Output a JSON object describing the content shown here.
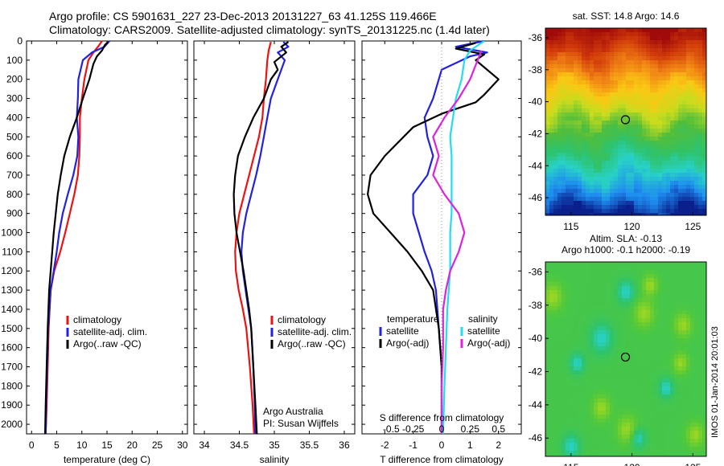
{
  "header": {
    "title_line1": "Argo profile: CS 5901631_227 23-Dec-2013 20131227_63 41.125S 119.466E",
    "title_line2": "Climatology: CARS2009. Satellite-adjusted climatology: synTS_20131225.nc (1.4d later)"
  },
  "colors": {
    "climatology": "#ee1111",
    "satellite": "#2222dd",
    "argo": "#000000",
    "satellite_salinity": "#22ddee",
    "argo_adj_salinity": "#dd22dd"
  },
  "chart_data": [
    {
      "type": "line",
      "id": "temperature",
      "xlabel": "temperature (deg C)",
      "xlim": [
        -1,
        31
      ],
      "ylim": [
        2050,
        0
      ],
      "xticks": [
        0,
        5,
        10,
        15,
        20,
        25,
        30
      ],
      "yticks": [
        0,
        100,
        200,
        300,
        400,
        500,
        600,
        700,
        800,
        900,
        1000,
        1100,
        1200,
        1300,
        1400,
        1500,
        1600,
        1700,
        1800,
        1900,
        2000
      ],
      "legend": {
        "position": "bottom-right",
        "entries": [
          "climatology",
          "satellite-adj. clim.",
          "Argo(..raw -QC)"
        ]
      },
      "series": [
        {
          "name": "climatology",
          "color": "#ee1111",
          "points": [
            [
              14.0,
              0
            ],
            [
              13.2,
              30
            ],
            [
              12.3,
              60
            ],
            [
              11.3,
              100
            ],
            [
              10.5,
              200
            ],
            [
              10.0,
              300
            ],
            [
              9.6,
              400
            ],
            [
              9.6,
              500
            ],
            [
              9.5,
              600
            ],
            [
              9.2,
              700
            ],
            [
              8.5,
              800
            ],
            [
              7.6,
              900
            ],
            [
              6.7,
              1000
            ],
            [
              5.7,
              1100
            ],
            [
              4.5,
              1200
            ],
            [
              3.8,
              1300
            ],
            [
              3.4,
              1500
            ],
            [
              3.2,
              1700
            ],
            [
              3.0,
              1900
            ],
            [
              2.8,
              2050
            ]
          ]
        },
        {
          "name": "satellite-adj. clim.",
          "color": "#2222dd",
          "points": [
            [
              15.5,
              0
            ],
            [
              14.5,
              30
            ],
            [
              12.0,
              60
            ],
            [
              10.2,
              100
            ],
            [
              9.3,
              200
            ],
            [
              9.2,
              300
            ],
            [
              9.0,
              400
            ],
            [
              9.3,
              500
            ],
            [
              9.1,
              600
            ],
            [
              8.3,
              700
            ],
            [
              7.2,
              800
            ],
            [
              6.2,
              900
            ],
            [
              5.5,
              1000
            ],
            [
              5.0,
              1100
            ],
            [
              4.4,
              1200
            ],
            [
              3.8,
              1300
            ],
            [
              3.3,
              1500
            ],
            [
              3.1,
              1700
            ],
            [
              2.9,
              1900
            ],
            [
              2.8,
              2050
            ]
          ]
        },
        {
          "name": "Argo(..raw -QC)",
          "color": "#000000",
          "points": [
            [
              15.2,
              5
            ],
            [
              14.6,
              20
            ],
            [
              14.0,
              50
            ],
            [
              13.0,
              80
            ],
            [
              12.3,
              120
            ],
            [
              11.5,
              200
            ],
            [
              10.2,
              300
            ],
            [
              9.0,
              400
            ],
            [
              7.6,
              500
            ],
            [
              6.5,
              600
            ],
            [
              5.8,
              700
            ],
            [
              5.2,
              800
            ],
            [
              4.8,
              900
            ],
            [
              4.4,
              1000
            ],
            [
              4.1,
              1100
            ],
            [
              3.8,
              1200
            ],
            [
              3.5,
              1300
            ],
            [
              3.2,
              1500
            ],
            [
              3.0,
              1700
            ],
            [
              2.8,
              1900
            ],
            [
              2.7,
              2050
            ]
          ]
        }
      ]
    },
    {
      "type": "line",
      "id": "salinity",
      "xlabel": "salinity",
      "xlim": [
        33.85,
        36.15
      ],
      "ylim": [
        2050,
        0
      ],
      "xticks": [
        34,
        34.5,
        35,
        35.5,
        36
      ],
      "xticklabels": [
        "34",
        "34.5",
        "35",
        "35.5",
        "36"
      ],
      "legend": {
        "position": "bottom-right",
        "entries": [
          "climatology",
          "satellite-adj. clim.",
          "Argo(..raw -QC)"
        ]
      },
      "annotation": [
        "Argo Australia",
        "PI: Susan Wijffels"
      ],
      "series": [
        {
          "name": "climatology",
          "color": "#ee1111",
          "points": [
            [
              34.95,
              5
            ],
            [
              34.92,
              50
            ],
            [
              34.9,
              100
            ],
            [
              34.88,
              200
            ],
            [
              34.85,
              300
            ],
            [
              34.83,
              400
            ],
            [
              34.78,
              500
            ],
            [
              34.71,
              600
            ],
            [
              34.64,
              700
            ],
            [
              34.57,
              800
            ],
            [
              34.5,
              900
            ],
            [
              34.46,
              1000
            ],
            [
              34.44,
              1100
            ],
            [
              34.45,
              1200
            ],
            [
              34.49,
              1300
            ],
            [
              34.55,
              1400
            ],
            [
              34.6,
              1500
            ],
            [
              34.65,
              1700
            ],
            [
              34.69,
              1900
            ],
            [
              34.71,
              2050
            ]
          ]
        },
        {
          "name": "satellite-adj. clim.",
          "color": "#2222dd",
          "points": [
            [
              35.13,
              5
            ],
            [
              35.2,
              30
            ],
            [
              35.05,
              60
            ],
            [
              35.15,
              100
            ],
            [
              35.05,
              200
            ],
            [
              34.95,
              300
            ],
            [
              34.9,
              400
            ],
            [
              34.85,
              500
            ],
            [
              34.8,
              600
            ],
            [
              34.74,
              700
            ],
            [
              34.67,
              800
            ],
            [
              34.6,
              900
            ],
            [
              34.55,
              1000
            ],
            [
              34.53,
              1100
            ],
            [
              34.55,
              1200
            ],
            [
              34.59,
              1300
            ],
            [
              34.63,
              1400
            ],
            [
              34.67,
              1500
            ],
            [
              34.7,
              1700
            ],
            [
              34.72,
              1900
            ],
            [
              34.73,
              2050
            ]
          ]
        },
        {
          "name": "Argo(..raw -QC)",
          "color": "#000000",
          "points": [
            [
              35.2,
              5
            ],
            [
              35.1,
              30
            ],
            [
              35.17,
              60
            ],
            [
              35.0,
              110
            ],
            [
              35.05,
              150
            ],
            [
              34.95,
              200
            ],
            [
              34.85,
              300
            ],
            [
              34.7,
              400
            ],
            [
              34.58,
              500
            ],
            [
              34.48,
              600
            ],
            [
              34.44,
              700
            ],
            [
              34.42,
              800
            ],
            [
              34.43,
              900
            ],
            [
              34.46,
              1000
            ],
            [
              34.51,
              1100
            ],
            [
              34.56,
              1200
            ],
            [
              34.6,
              1300
            ],
            [
              34.64,
              1400
            ],
            [
              34.67,
              1500
            ],
            [
              34.7,
              1700
            ],
            [
              34.73,
              1900
            ],
            [
              34.75,
              2050
            ]
          ]
        }
      ]
    },
    {
      "type": "line",
      "id": "difference",
      "xlabel": "T difference from climatology",
      "xlabel_top": "S difference from climatology",
      "xlim": [
        -2.8,
        2.8
      ],
      "ylim": [
        2050,
        0
      ],
      "xticks": [
        -2,
        -1,
        0,
        1,
        2
      ],
      "top_ticklabels": [
        "-0.5",
        "-0.25",
        "0",
        "0.25",
        "0.5"
      ],
      "legend_left": {
        "title": "temperature",
        "entries": [
          "satellite",
          "Argo(-adj)"
        ]
      },
      "legend_right": {
        "title": "salinity",
        "entries": [
          "satellite",
          "Argo(-adj)"
        ]
      },
      "series": [
        {
          "name": "satellite",
          "quantity": "temperature",
          "color": "#2222dd",
          "points": [
            [
              1.5,
              0
            ],
            [
              0.5,
              30
            ],
            [
              1.6,
              60
            ],
            [
              1.0,
              80
            ],
            [
              0.0,
              150
            ],
            [
              -0.3,
              300
            ],
            [
              -0.6,
              400
            ],
            [
              -0.5,
              500
            ],
            [
              -0.3,
              600
            ],
            [
              -0.5,
              700
            ],
            [
              -1.0,
              800
            ],
            [
              -1.0,
              900
            ],
            [
              -0.8,
              1000
            ],
            [
              -0.6,
              1100
            ],
            [
              -0.35,
              1200
            ],
            [
              -0.2,
              1300
            ],
            [
              -0.1,
              1500
            ],
            [
              0.0,
              1700
            ],
            [
              0.0,
              1900
            ],
            [
              0.0,
              2050
            ]
          ]
        },
        {
          "name": "Argo(-adj)",
          "quantity": "temperature",
          "color": "#000000",
          "points": [
            [
              1.2,
              10
            ],
            [
              0.5,
              40
            ],
            [
              1.5,
              70
            ],
            [
              1.2,
              100
            ],
            [
              2.0,
              200
            ],
            [
              1.5,
              280
            ],
            [
              1.2,
              320
            ],
            [
              0.0,
              380
            ],
            [
              -1.0,
              450
            ],
            [
              -2.0,
              600
            ],
            [
              -2.5,
              700
            ],
            [
              -2.6,
              800
            ],
            [
              -2.4,
              900
            ],
            [
              -1.8,
              1000
            ],
            [
              -1.2,
              1100
            ],
            [
              -0.7,
              1200
            ],
            [
              -0.3,
              1300
            ],
            [
              -0.1,
              1500
            ],
            [
              0.0,
              1700
            ],
            [
              0.0,
              1900
            ],
            [
              0.0,
              2050
            ]
          ]
        },
        {
          "name": "satellite",
          "quantity": "salinity",
          "color": "#22ddee",
          "points": [
            [
              1.5,
              0
            ],
            [
              1.0,
              50
            ],
            [
              0.8,
              100
            ],
            [
              0.7,
              200
            ],
            [
              0.5,
              300
            ],
            [
              0.4,
              400
            ],
            [
              0.3,
              500
            ],
            [
              0.35,
              600
            ],
            [
              0.35,
              700
            ],
            [
              0.35,
              800
            ],
            [
              0.35,
              900
            ],
            [
              0.3,
              1000
            ],
            [
              0.3,
              1100
            ],
            [
              0.3,
              1200
            ],
            [
              0.25,
              1300
            ],
            [
              0.2,
              1400
            ],
            [
              0.15,
              1600
            ],
            [
              0.1,
              1800
            ],
            [
              0.05,
              2050
            ]
          ]
        },
        {
          "name": "Argo(-adj)",
          "quantity": "salinity",
          "color": "#dd22dd",
          "points": [
            [
              1.4,
              50
            ],
            [
              1.0,
              200
            ],
            [
              0.6,
              300
            ],
            [
              0.1,
              400
            ],
            [
              -0.3,
              500
            ],
            [
              -0.1,
              600
            ],
            [
              -0.3,
              700
            ],
            [
              0.1,
              800
            ],
            [
              0.6,
              900
            ],
            [
              0.8,
              1000
            ],
            [
              0.6,
              1100
            ],
            [
              0.3,
              1200
            ],
            [
              0.15,
              1300
            ],
            [
              0.05,
              1400
            ],
            [
              0.05,
              1600
            ],
            [
              0.0,
              1800
            ],
            [
              0.0,
              2050
            ]
          ]
        }
      ]
    },
    {
      "type": "heatmap",
      "id": "sst_map",
      "title": "sat. SST: 14.8 Argo: 14.6",
      "xlim": [
        112.9,
        126.1
      ],
      "ylim": [
        -47.1,
        -35.4
      ],
      "xticks": [
        115,
        120,
        125
      ],
      "yticks": [
        -36,
        -38,
        -40,
        -42,
        -44,
        -46
      ],
      "marker": {
        "lon": 119.466,
        "lat": -41.125
      },
      "colorscale": [
        "#0a1e8c",
        "#1e8cf0",
        "#28d2c8",
        "#2dc36e",
        "#50be3c",
        "#c8dc1e",
        "#fac814",
        "#f08214",
        "#d23c0a",
        "#a00a0a"
      ]
    },
    {
      "type": "heatmap",
      "id": "sla_map",
      "title": "Altim. SLA: -0.13",
      "subtitle": "Argo h1000: -0.1 h2000: -0.19",
      "xlim": [
        112.9,
        126.1
      ],
      "ylim": [
        -47.1,
        -35.4
      ],
      "xticks": [
        115,
        120,
        125
      ],
      "yticks": [
        -36,
        -38,
        -40,
        -42,
        -44,
        -46
      ],
      "marker": {
        "lon": 119.466,
        "lat": -41.125
      }
    }
  ],
  "footer": {
    "watermark": "IMOS 01-Jan-2014 20:01:03"
  }
}
